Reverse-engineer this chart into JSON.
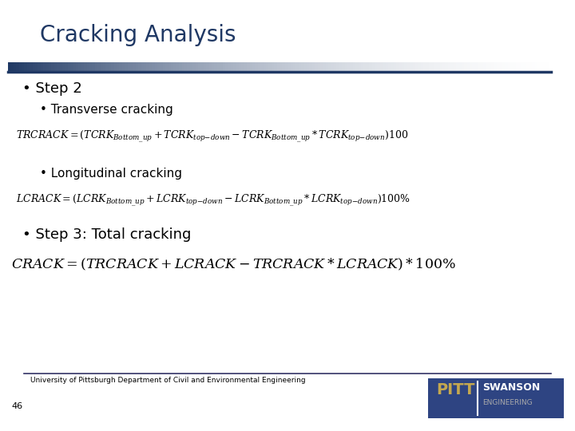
{
  "title": "Cracking Analysis",
  "title_color": "#1F3864",
  "title_fontsize": 20,
  "bg_color": "#FFFFFF",
  "slide_number": "46",
  "footer_text": "University of Pittsburgh Department of Civil and Environmental Engineering",
  "step2_label": "• Step 2",
  "transverse_label": "• Transverse cracking",
  "longitudinal_label": "• Longitudinal cracking",
  "step3_label": "• Step 3: Total cracking",
  "header_line_color1": "#1F3864",
  "pitt_bg_color": "#2E4482",
  "pitt_text_color": "#C5A84F",
  "swanson_text_color": "#FFFFFF",
  "swanson_sub_color": "#AAAAAA",
  "formula_tcrk": "$TRCRACK = (TCRK_{Bottom\\_up} + TCRK_{top\\text{-}down} - TCRK_{Bottom\\_up} * TCRK_{top\\text{-}down})100$",
  "formula_lcrk": "$LCRACK = (LCRK_{Bottom\\_up} + LCRK_{top\\text{-}down} - LCRK_{Bottom\\_up} * LCRK_{top\\text{-}down})100\\%$",
  "formula_crack": "$CRACK = (TRCRACK + LCRACK - TRCRACK*LCRACK) * 100\\%$"
}
